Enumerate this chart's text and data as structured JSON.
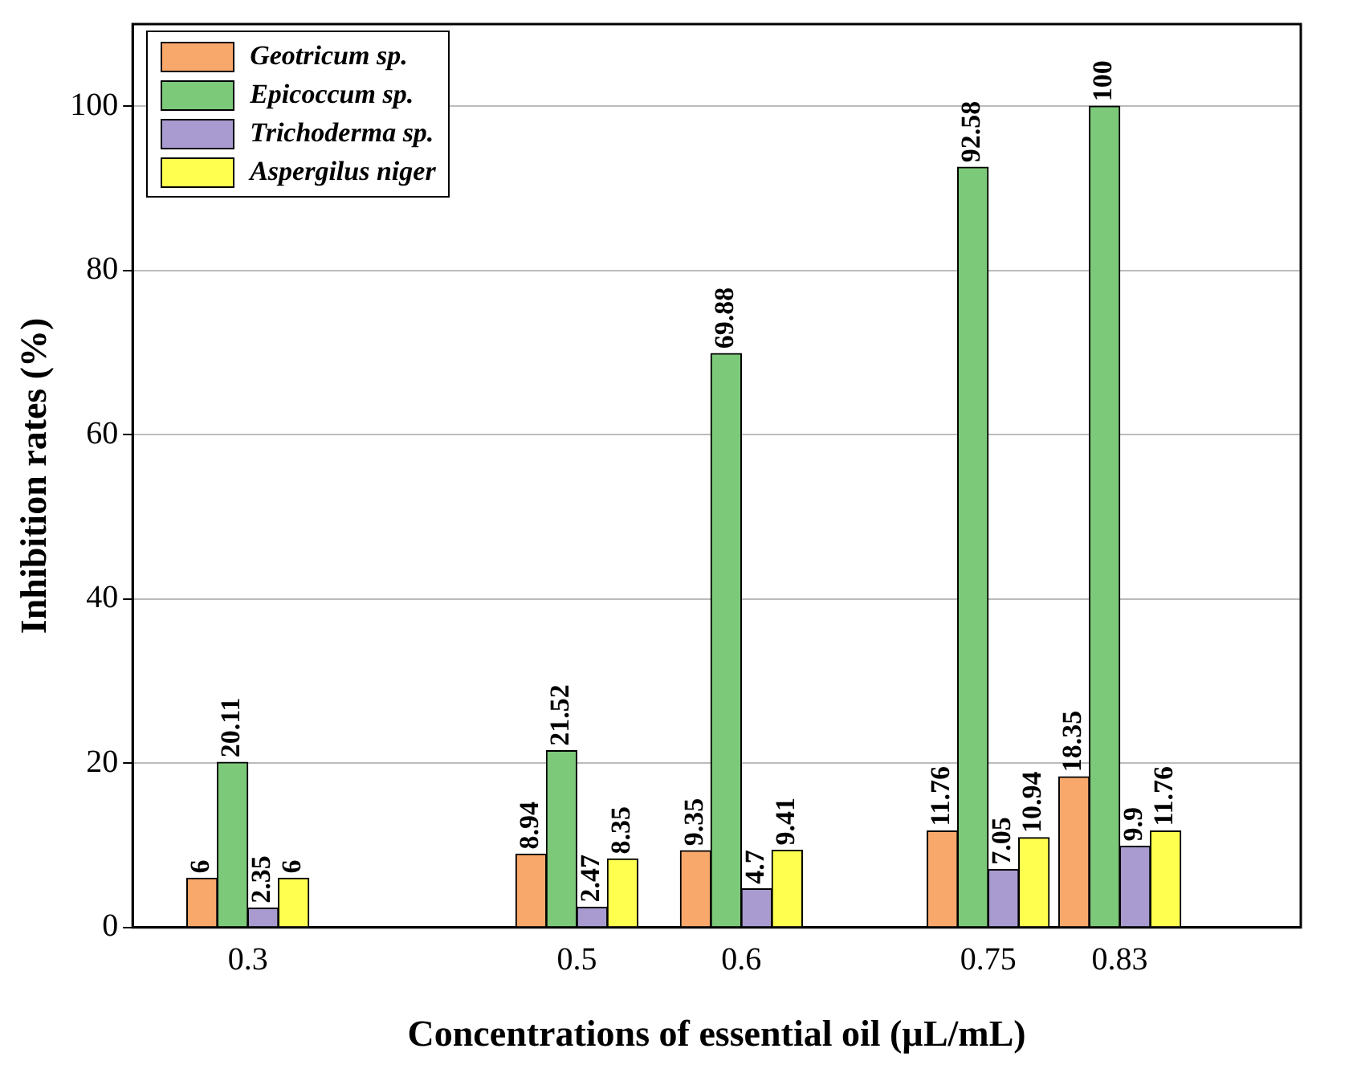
{
  "chart_data": {
    "type": "bar",
    "xlabel": "Concentrations of essential oil (µL/mL)",
    "ylabel": "Inhibition rates (%)",
    "x": [
      0.3,
      0.5,
      0.6,
      0.75,
      0.83
    ],
    "series": [
      {
        "name": "Geotricum sp.",
        "color": "#f9a86b",
        "values": [
          6,
          8.94,
          9.35,
          11.76,
          18.35
        ]
      },
      {
        "name": "Epicoccum sp.",
        "color": "#7dc97a",
        "values": [
          20.11,
          21.52,
          69.88,
          92.58,
          100
        ]
      },
      {
        "name": "Trichoderma sp.",
        "color": "#a99bd0",
        "values": [
          2.35,
          2.47,
          4.7,
          7.05,
          9.9
        ]
      },
      {
        "name": "Aspergilus niger",
        "color": "#ffff50",
        "values": [
          6,
          8.35,
          9.41,
          10.94,
          11.76
        ]
      }
    ],
    "xlim": [
      0.23,
      0.94
    ],
    "xticks": [
      0.3,
      0.5,
      0.6,
      0.75,
      0.83
    ],
    "ylim": [
      0,
      110
    ],
    "yticks": [
      0,
      20,
      40,
      60,
      80,
      100
    ],
    "grid": "y",
    "legend": "top left",
    "data_labels": true
  }
}
